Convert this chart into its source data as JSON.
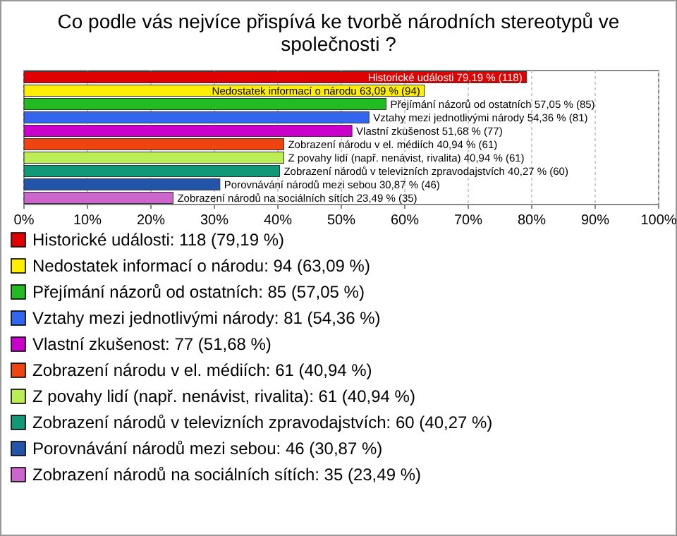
{
  "chart_data": {
    "type": "bar",
    "orientation": "horizontal",
    "title": "Co podle vás nejvíce přispívá ke tvorbě národních stereotypů ve společnosti ?",
    "categories": [
      null,
      null,
      null,
      null,
      null,
      null,
      null,
      null,
      null,
      null
    ],
    "xlim": [
      0,
      100
    ],
    "xticks": [
      {
        "value": 0,
        "label": "0%"
      },
      {
        "value": 10,
        "label": "10%"
      },
      {
        "value": 20,
        "label": "20%"
      },
      {
        "value": 30,
        "label": "30%"
      },
      {
        "value": 40,
        "label": "40%"
      },
      {
        "value": 50,
        "label": "50%"
      },
      {
        "value": 60,
        "label": "60%"
      },
      {
        "value": 70,
        "label": "70%"
      },
      {
        "value": 80,
        "label": "80%"
      },
      {
        "value": 90,
        "label": "90%"
      },
      {
        "value": 100,
        "label": "100%"
      }
    ],
    "grid": "x",
    "legend": "bottom",
    "series": [
      {
        "name": "Historické události: 118 (79,19 %)",
        "color": "#e00000",
        "values": [
          79.19,
          null,
          null,
          null,
          null,
          null,
          null,
          null,
          null,
          null
        ],
        "value_labels": [
          "Historické události 79,19 % (118)",
          null,
          null,
          null,
          null,
          null,
          null,
          null,
          null,
          null
        ]
      },
      {
        "name": "Nedostatek informací o národu: 94 (63,09 %)",
        "color": "#ffee00",
        "values": [
          null,
          63.09,
          null,
          null,
          null,
          null,
          null,
          null,
          null,
          null
        ],
        "value_labels": [
          null,
          "Nedostatek informací o národu 63,09 % (94)",
          null,
          null,
          null,
          null,
          null,
          null,
          null,
          null
        ]
      },
      {
        "name": "Přejímání názorů od ostatních: 85 (57,05 %)",
        "color": "#22bb22",
        "values": [
          null,
          null,
          57.05,
          null,
          null,
          null,
          null,
          null,
          null,
          null
        ],
        "value_labels": [
          null,
          null,
          "Přejímání názorů od ostatních 57,05 % (85)",
          null,
          null,
          null,
          null,
          null,
          null,
          null
        ]
      },
      {
        "name": "Vztahy mezi jednotlivými národy: 81 (54,36 %)",
        "color": "#3366ee",
        "values": [
          null,
          null,
          null,
          54.36,
          null,
          null,
          null,
          null,
          null,
          null
        ],
        "value_labels": [
          null,
          null,
          null,
          "Vztahy mezi jednotlivými národy 54,36 % (81)",
          null,
          null,
          null,
          null,
          null,
          null
        ]
      },
      {
        "name": "Vlastní zkušenost: 77 (51,68 %)",
        "color": "#cc00cc",
        "values": [
          null,
          null,
          null,
          null,
          51.68,
          null,
          null,
          null,
          null,
          null
        ],
        "value_labels": [
          null,
          null,
          null,
          null,
          "Vlastní zkušenost 51,68 % (77)",
          null,
          null,
          null,
          null,
          null
        ]
      },
      {
        "name": "Zobrazení národu v el. médiích: 61 (40,94 %)",
        "color": "#ee4411",
        "values": [
          null,
          null,
          null,
          null,
          null,
          40.94,
          null,
          null,
          null,
          null
        ],
        "value_labels": [
          null,
          null,
          null,
          null,
          null,
          "Zobrazení národu v el. médiích 40,94 % (61)",
          null,
          null,
          null,
          null
        ]
      },
      {
        "name": "Z povahy lidí (např. nenávist, rivalita): 61 (40,94 %)",
        "color": "#bbee55",
        "values": [
          null,
          null,
          null,
          null,
          null,
          null,
          40.94,
          null,
          null,
          null
        ],
        "value_labels": [
          null,
          null,
          null,
          null,
          null,
          null,
          "Z povahy lidí (např. nenávist, rivalita) 40,94 % (61)",
          null,
          null,
          null
        ]
      },
      {
        "name": "Zobrazení národů v televizních zpravodajstvích: 60 (40,27 %)",
        "color": "#119977",
        "values": [
          null,
          null,
          null,
          null,
          null,
          null,
          null,
          40.27,
          null,
          null
        ],
        "value_labels": [
          null,
          null,
          null,
          null,
          null,
          null,
          null,
          "Zobrazení národů v televizních zpravodajstvích 40,27 % (60)",
          null,
          null
        ]
      },
      {
        "name": "Porovnávání národů mezi sebou: 46 (30,87 %)",
        "color": "#2255aa",
        "values": [
          null,
          null,
          null,
          null,
          null,
          null,
          null,
          null,
          30.87,
          null
        ],
        "value_labels": [
          null,
          null,
          null,
          null,
          null,
          null,
          null,
          null,
          "Porovnávání národů mezi sebou 30,87 % (46)",
          null
        ]
      },
      {
        "name": "Zobrazení národů na sociálních sítích: 35 (23,49 %)",
        "color": "#cc66cc",
        "values": [
          null,
          null,
          null,
          null,
          null,
          null,
          null,
          null,
          null,
          23.49
        ],
        "value_labels": [
          null,
          null,
          null,
          null,
          null,
          null,
          null,
          null,
          null,
          "Zobrazení národů na sociálních sítích 23,49 % (35)"
        ]
      }
    ]
  }
}
